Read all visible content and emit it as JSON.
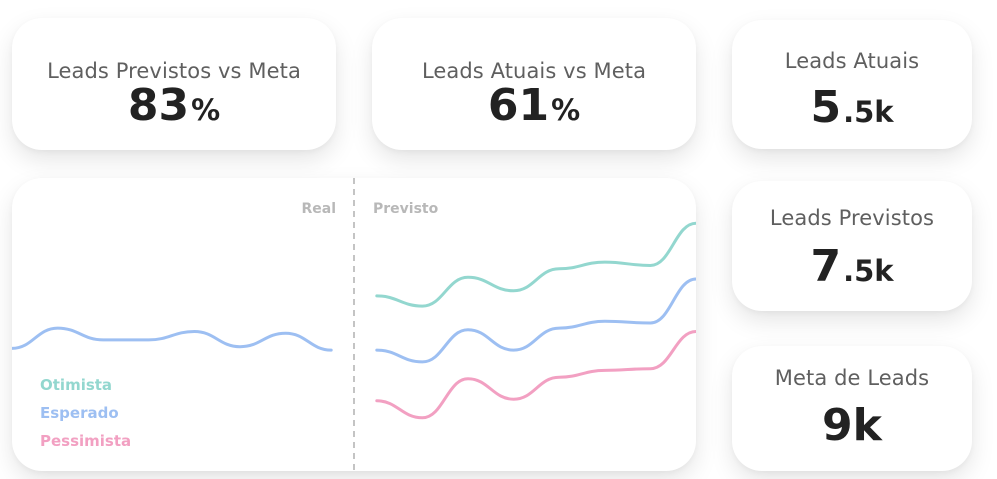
{
  "kpis": {
    "leads_previstos_vs_meta": {
      "label": "Leads Previstos vs Meta",
      "value": "83",
      "unit": "%"
    },
    "leads_atuais_vs_meta": {
      "label": "Leads Atuais vs Meta",
      "value": "61",
      "unit": "%"
    },
    "leads_atuais": {
      "label": "Leads Atuais",
      "value": "5",
      "suffix": ".5k"
    },
    "leads_previstos": {
      "label": "Leads Previstos",
      "value": "7",
      "suffix": ".5k"
    },
    "meta_de_leads": {
      "label": "Meta de Leads",
      "value": "9k"
    }
  },
  "chart_data": {
    "type": "line",
    "phase_labels": {
      "real": "Real",
      "previsto": "Previsto"
    },
    "x": [
      0,
      1,
      2,
      3,
      4,
      5,
      6,
      7,
      8,
      9,
      10,
      11,
      12,
      13,
      14,
      15
    ],
    "series": [
      {
        "name": "Real",
        "color": "#9dbff2",
        "x": [
          0,
          1,
          2,
          3,
          4,
          5,
          6,
          7
        ],
        "values": [
          50,
          62,
          55,
          55,
          60,
          51,
          59,
          49
        ]
      },
      {
        "name": "Otimista",
        "color": "#93d7cf",
        "x": [
          8,
          9,
          10,
          11,
          12,
          13,
          14,
          15
        ],
        "values": [
          81,
          75,
          92,
          84,
          97,
          101,
          99,
          124
        ]
      },
      {
        "name": "Esperado",
        "color": "#9dbff2",
        "x": [
          8,
          9,
          10,
          11,
          12,
          13,
          14,
          15
        ],
        "values": [
          49,
          42,
          61,
          49,
          62,
          66,
          65,
          91
        ]
      },
      {
        "name": "Pessimista",
        "color": "#f2a0c2",
        "x": [
          8,
          9,
          10,
          11,
          12,
          13,
          14,
          15
        ],
        "values": [
          19,
          9,
          32,
          20,
          33,
          37,
          38,
          60
        ]
      }
    ],
    "legend": {
      "position": "bottom-left",
      "items": [
        "Otimista",
        "Esperado",
        "Pessimista"
      ]
    },
    "grid": false
  }
}
